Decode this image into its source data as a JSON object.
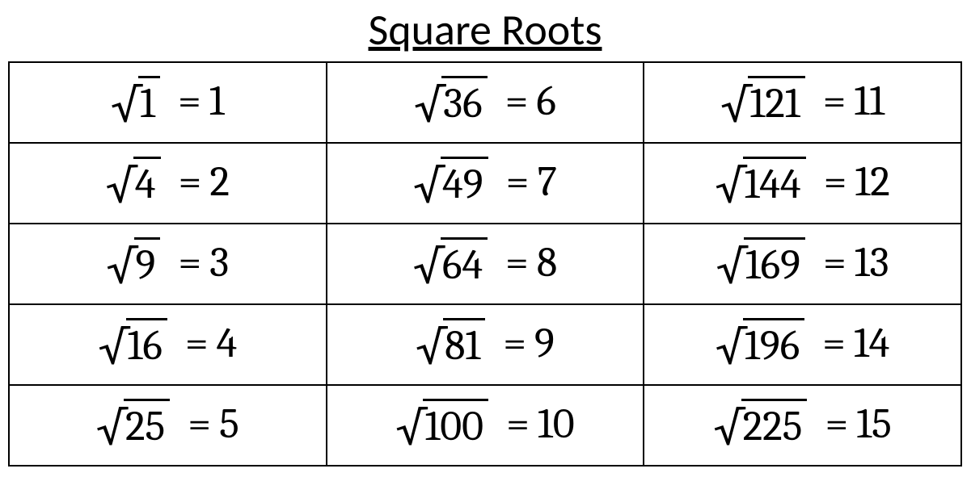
{
  "title": "Square Roots",
  "table": {
    "columns": 3,
    "rows": 5,
    "border_color": "#000000",
    "background_color": "#ffffff",
    "text_color": "#000000",
    "title_fontsize": 54,
    "cell_fontsize": 52,
    "cells": [
      {
        "r": 0,
        "c": 0,
        "radicand": "1",
        "result": "1"
      },
      {
        "r": 1,
        "c": 0,
        "radicand": "4",
        "result": "2"
      },
      {
        "r": 2,
        "c": 0,
        "radicand": "9",
        "result": "3"
      },
      {
        "r": 3,
        "c": 0,
        "radicand": "16",
        "result": "4"
      },
      {
        "r": 4,
        "c": 0,
        "radicand": "25",
        "result": "5"
      },
      {
        "r": 0,
        "c": 1,
        "radicand": "36",
        "result": "6"
      },
      {
        "r": 1,
        "c": 1,
        "radicand": "49",
        "result": "7"
      },
      {
        "r": 2,
        "c": 1,
        "radicand": "64",
        "result": "8"
      },
      {
        "r": 3,
        "c": 1,
        "radicand": "81",
        "result": "9"
      },
      {
        "r": 4,
        "c": 1,
        "radicand": "100",
        "result": "10"
      },
      {
        "r": 0,
        "c": 2,
        "radicand": "121",
        "result": "11"
      },
      {
        "r": 1,
        "c": 2,
        "radicand": "144",
        "result": "12"
      },
      {
        "r": 2,
        "c": 2,
        "radicand": "169",
        "result": "13"
      },
      {
        "r": 3,
        "c": 2,
        "radicand": "196",
        "result": "14"
      },
      {
        "r": 4,
        "c": 2,
        "radicand": "225",
        "result": "15"
      }
    ]
  },
  "equals_symbol": "="
}
